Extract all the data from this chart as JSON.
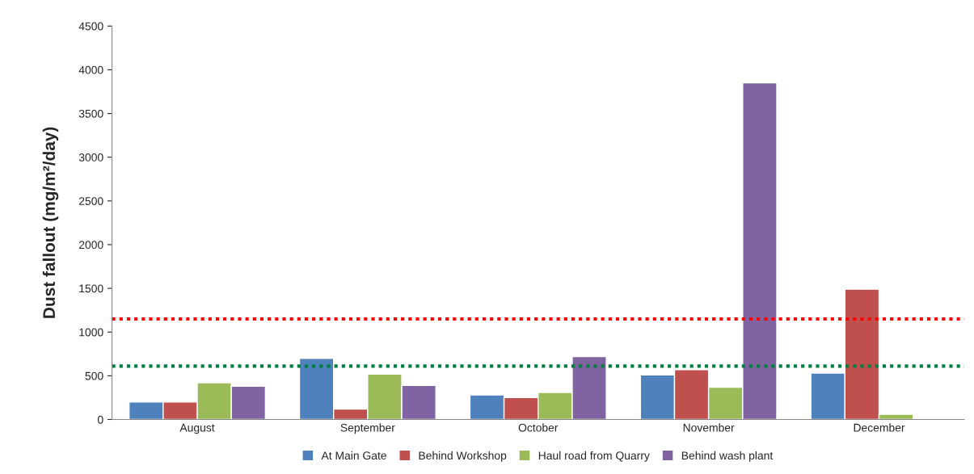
{
  "chart_data": {
    "type": "bar",
    "ylabel": "Dust fallout (mg/m²/day)",
    "categories": [
      "August",
      "September",
      "October",
      "November",
      "December"
    ],
    "series": [
      {
        "name": "At Main Gate",
        "color": "#4f81bd",
        "values": [
          200,
          700,
          280,
          510,
          530
        ]
      },
      {
        "name": "Behind Workshop",
        "color": "#c0504d",
        "values": [
          200,
          120,
          250,
          570,
          1490
        ]
      },
      {
        "name": "Haul road from Quarry",
        "color": "#9bbb59",
        "values": [
          420,
          520,
          310,
          370,
          60
        ]
      },
      {
        "name": "Behind wash plant",
        "color": "#8064a2",
        "values": [
          380,
          390,
          720,
          3850,
          null
        ]
      }
    ],
    "ylim": [
      0,
      4500
    ],
    "yticks": [
      0,
      500,
      1000,
      1500,
      2000,
      2500,
      3000,
      3500,
      4000,
      4500
    ],
    "ref_lines": [
      {
        "axis": "y",
        "value": 1150,
        "color": "#ff0000",
        "line_style": "dotted"
      },
      {
        "axis": "y",
        "value": 610,
        "color": "#008040",
        "line_style": "dotted"
      }
    ],
    "grid": false,
    "legend": "bottom"
  }
}
